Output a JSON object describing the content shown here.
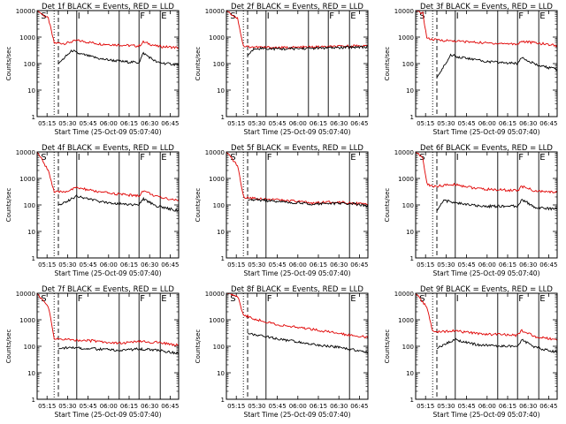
{
  "ylabel": "Counts/sec",
  "xlabel": "Start Time (25-Oct-09 05:07:40)",
  "time_ticks": [
    "05:15",
    "05:30",
    "05:45",
    "06:00",
    "06:15",
    "06:30",
    "06:45"
  ],
  "y_ticks": [
    "1",
    "10",
    "100",
    "1000",
    "10000"
  ],
  "colors": {
    "events": "#000000",
    "lld": "#e00000"
  },
  "chart_data": [
    {
      "type": "line",
      "title": "Det 1f BLACK = Events, RED = LLD",
      "xlim": [
        0,
        100
      ],
      "ylim": [
        1,
        10000
      ],
      "yscale": "log",
      "markers": [
        {
          "label": "S",
          "x": 2
        },
        {
          "label": "I",
          "x": 28
        },
        {
          "label": "F",
          "x": 72
        },
        {
          "label": "E",
          "x": 87
        }
      ],
      "vlines": [
        {
          "x": 12,
          "style": "dotted"
        },
        {
          "x": 15,
          "style": "dashed"
        },
        {
          "x": 28,
          "style": "solid"
        },
        {
          "x": 58,
          "style": "solid"
        },
        {
          "x": 72,
          "style": "solid"
        },
        {
          "x": 87,
          "style": "solid"
        }
      ],
      "series": [
        {
          "role": "lld",
          "x": [
            0,
            8,
            12,
            20,
            28,
            45,
            60,
            72,
            75,
            85,
            100
          ],
          "y": [
            10000,
            5000,
            600,
            580,
            750,
            550,
            500,
            460,
            650,
            450,
            400
          ]
        },
        {
          "role": "events",
          "x": [
            15,
            20,
            25,
            28,
            45,
            60,
            72,
            75,
            85,
            100
          ],
          "y": [
            100,
            180,
            320,
            250,
            150,
            120,
            110,
            250,
            110,
            90
          ]
        }
      ]
    },
    {
      "type": "line",
      "title": "Det 2f BLACK = Events, RED = LLD",
      "xlim": [
        0,
        100
      ],
      "ylim": [
        1,
        10000
      ],
      "yscale": "log",
      "markers": [
        {
          "label": "S",
          "x": 2
        },
        {
          "label": "I",
          "x": 28
        },
        {
          "label": "F",
          "x": 72
        },
        {
          "label": "E",
          "x": 87
        }
      ],
      "vlines": [
        {
          "x": 12,
          "style": "dotted"
        },
        {
          "x": 15,
          "style": "dashed"
        },
        {
          "x": 28,
          "style": "solid"
        },
        {
          "x": 58,
          "style": "solid"
        },
        {
          "x": 72,
          "style": "solid"
        },
        {
          "x": 87,
          "style": "solid"
        }
      ],
      "series": [
        {
          "role": "lld",
          "x": [
            0,
            8,
            12,
            20,
            40,
            60,
            80,
            95,
            100
          ],
          "y": [
            10000,
            5000,
            450,
            420,
            400,
            420,
            440,
            480,
            450
          ]
        },
        {
          "role": "events",
          "x": [
            15,
            20,
            40,
            60,
            80,
            95,
            100
          ],
          "y": [
            200,
            380,
            360,
            380,
            400,
            430,
            420
          ]
        }
      ]
    },
    {
      "type": "line",
      "title": "Det 3f BLACK = Events, RED = LLD",
      "xlim": [
        0,
        100
      ],
      "ylim": [
        1,
        10000
      ],
      "yscale": "log",
      "markers": [
        {
          "label": "S",
          "x": 2
        },
        {
          "label": "I",
          "x": 28
        },
        {
          "label": "F",
          "x": 72
        },
        {
          "label": "E",
          "x": 87
        }
      ],
      "vlines": [
        {
          "x": 12,
          "style": "dotted"
        },
        {
          "x": 15,
          "style": "dashed"
        },
        {
          "x": 28,
          "style": "solid"
        },
        {
          "x": 58,
          "style": "solid"
        },
        {
          "x": 72,
          "style": "solid"
        },
        {
          "x": 87,
          "style": "solid"
        }
      ],
      "series": [
        {
          "role": "lld",
          "x": [
            0,
            5,
            8,
            12,
            30,
            50,
            72,
            75,
            100
          ],
          "y": [
            10000,
            8000,
            900,
            800,
            700,
            600,
            550,
            700,
            480
          ]
        },
        {
          "role": "events",
          "x": [
            15,
            20,
            25,
            30,
            50,
            72,
            75,
            85,
            100
          ],
          "y": [
            30,
            80,
            220,
            180,
            120,
            100,
            180,
            90,
            60
          ]
        }
      ]
    },
    {
      "type": "line",
      "title": "Det 4f BLACK = Events, RED = LLD",
      "xlim": [
        0,
        100
      ],
      "ylim": [
        1,
        10000
      ],
      "yscale": "log",
      "markers": [
        {
          "label": "S",
          "x": 2
        },
        {
          "label": "I",
          "x": 28
        },
        {
          "label": "F",
          "x": 72
        },
        {
          "label": "E",
          "x": 87
        }
      ],
      "vlines": [
        {
          "x": 12,
          "style": "dotted"
        },
        {
          "x": 15,
          "style": "dashed"
        },
        {
          "x": 28,
          "style": "solid"
        },
        {
          "x": 58,
          "style": "solid"
        },
        {
          "x": 72,
          "style": "solid"
        },
        {
          "x": 87,
          "style": "solid"
        }
      ],
      "series": [
        {
          "role": "lld",
          "x": [
            0,
            8,
            12,
            20,
            28,
            45,
            60,
            72,
            75,
            85,
            100
          ],
          "y": [
            10000,
            2000,
            300,
            320,
            450,
            300,
            250,
            220,
            350,
            200,
            150
          ]
        },
        {
          "role": "events",
          "x": [
            15,
            20,
            28,
            45,
            60,
            72,
            75,
            85,
            100
          ],
          "y": [
            100,
            130,
            220,
            130,
            110,
            100,
            170,
            90,
            60
          ]
        }
      ]
    },
    {
      "type": "line",
      "title": "Det 5f BLACK = Events, RED = LLD",
      "xlim": [
        0,
        100
      ],
      "ylim": [
        1,
        10000
      ],
      "yscale": "log",
      "markers": [
        {
          "label": "S",
          "x": 2
        },
        {
          "label": "F",
          "x": 28
        },
        {
          "label": "E",
          "x": 87
        }
      ],
      "vlines": [
        {
          "x": 12,
          "style": "dotted"
        },
        {
          "x": 15,
          "style": "dashed"
        },
        {
          "x": 28,
          "style": "solid"
        },
        {
          "x": 87,
          "style": "solid"
        }
      ],
      "series": [
        {
          "role": "lld",
          "x": [
            0,
            8,
            12,
            20,
            40,
            60,
            80,
            90,
            100
          ],
          "y": [
            10000,
            3000,
            200,
            180,
            150,
            120,
            130,
            120,
            100
          ]
        },
        {
          "role": "events",
          "x": [
            15,
            20,
            40,
            60,
            80,
            90,
            100
          ],
          "y": [
            150,
            160,
            130,
            110,
            115,
            110,
            90
          ]
        }
      ]
    },
    {
      "type": "line",
      "title": "Det 6f BLACK = Events, RED = LLD",
      "xlim": [
        0,
        100
      ],
      "ylim": [
        1,
        10000
      ],
      "yscale": "log",
      "markers": [
        {
          "label": "S",
          "x": 2
        },
        {
          "label": "I",
          "x": 28
        },
        {
          "label": "F",
          "x": 72
        },
        {
          "label": "E",
          "x": 87
        }
      ],
      "vlines": [
        {
          "x": 12,
          "style": "dotted"
        },
        {
          "x": 15,
          "style": "dashed"
        },
        {
          "x": 28,
          "style": "solid"
        },
        {
          "x": 58,
          "style": "solid"
        },
        {
          "x": 72,
          "style": "solid"
        },
        {
          "x": 87,
          "style": "solid"
        }
      ],
      "series": [
        {
          "role": "lld",
          "x": [
            0,
            5,
            8,
            12,
            28,
            45,
            72,
            75,
            85,
            100
          ],
          "y": [
            10000,
            6000,
            600,
            500,
            600,
            400,
            350,
            500,
            330,
            300
          ]
        },
        {
          "role": "events",
          "x": [
            15,
            20,
            28,
            45,
            72,
            75,
            85,
            100
          ],
          "y": [
            60,
            150,
            120,
            90,
            90,
            160,
            80,
            70
          ]
        }
      ]
    },
    {
      "type": "line",
      "title": "Det 7f BLACK = Events, RED = LLD",
      "xlim": [
        0,
        100
      ],
      "ylim": [
        1,
        10000
      ],
      "yscale": "log",
      "markers": [
        {
          "label": "S",
          "x": 2
        },
        {
          "label": "F",
          "x": 28
        },
        {
          "label": "F",
          "x": 72
        },
        {
          "label": "E",
          "x": 87
        }
      ],
      "vlines": [
        {
          "x": 12,
          "style": "dotted"
        },
        {
          "x": 15,
          "style": "dashed"
        },
        {
          "x": 28,
          "style": "solid"
        },
        {
          "x": 58,
          "style": "solid"
        },
        {
          "x": 72,
          "style": "solid"
        },
        {
          "x": 87,
          "style": "solid"
        }
      ],
      "series": [
        {
          "role": "lld",
          "x": [
            0,
            8,
            12,
            20,
            40,
            58,
            72,
            85,
            100
          ],
          "y": [
            10000,
            3000,
            200,
            180,
            160,
            130,
            150,
            140,
            110
          ]
        },
        {
          "role": "events",
          "x": [
            15,
            20,
            40,
            58,
            72,
            85,
            100
          ],
          "y": [
            80,
            90,
            80,
            70,
            80,
            70,
            55
          ]
        }
      ]
    },
    {
      "type": "line",
      "title": "Det 8f BLACK = Events, RED = LLD",
      "xlim": [
        0,
        100
      ],
      "ylim": [
        1,
        10000
      ],
      "yscale": "log",
      "markers": [
        {
          "label": "S",
          "x": 2
        },
        {
          "label": "F",
          "x": 28
        },
        {
          "label": "E",
          "x": 87
        }
      ],
      "vlines": [
        {
          "x": 12,
          "style": "dotted"
        },
        {
          "x": 15,
          "style": "dashed"
        },
        {
          "x": 28,
          "style": "solid"
        },
        {
          "x": 87,
          "style": "solid"
        }
      ],
      "series": [
        {
          "role": "lld",
          "x": [
            0,
            8,
            12,
            25,
            40,
            60,
            80,
            100
          ],
          "y": [
            10000,
            8000,
            1500,
            900,
            600,
            450,
            300,
            220
          ]
        },
        {
          "role": "events",
          "x": [
            15,
            25,
            40,
            60,
            80,
            100
          ],
          "y": [
            300,
            250,
            180,
            120,
            90,
            60
          ]
        }
      ]
    },
    {
      "type": "line",
      "title": "Det 9f BLACK = Events, RED = LLD",
      "xlim": [
        0,
        100
      ],
      "ylim": [
        1,
        10000
      ],
      "yscale": "log",
      "markers": [
        {
          "label": "S",
          "x": 2
        },
        {
          "label": "I",
          "x": 28
        },
        {
          "label": "F",
          "x": 72
        },
        {
          "label": "E",
          "x": 87
        }
      ],
      "vlines": [
        {
          "x": 12,
          "style": "dotted"
        },
        {
          "x": 15,
          "style": "dashed"
        },
        {
          "x": 28,
          "style": "solid"
        },
        {
          "x": 58,
          "style": "solid"
        },
        {
          "x": 72,
          "style": "solid"
        },
        {
          "x": 87,
          "style": "solid"
        }
      ],
      "series": [
        {
          "role": "lld",
          "x": [
            0,
            8,
            12,
            28,
            45,
            72,
            75,
            85,
            100
          ],
          "y": [
            10000,
            3000,
            350,
            380,
            300,
            260,
            400,
            230,
            180
          ]
        },
        {
          "role": "events",
          "x": [
            15,
            20,
            28,
            45,
            72,
            75,
            85,
            100
          ],
          "y": [
            80,
            120,
            180,
            110,
            100,
            180,
            90,
            60
          ]
        }
      ]
    }
  ]
}
